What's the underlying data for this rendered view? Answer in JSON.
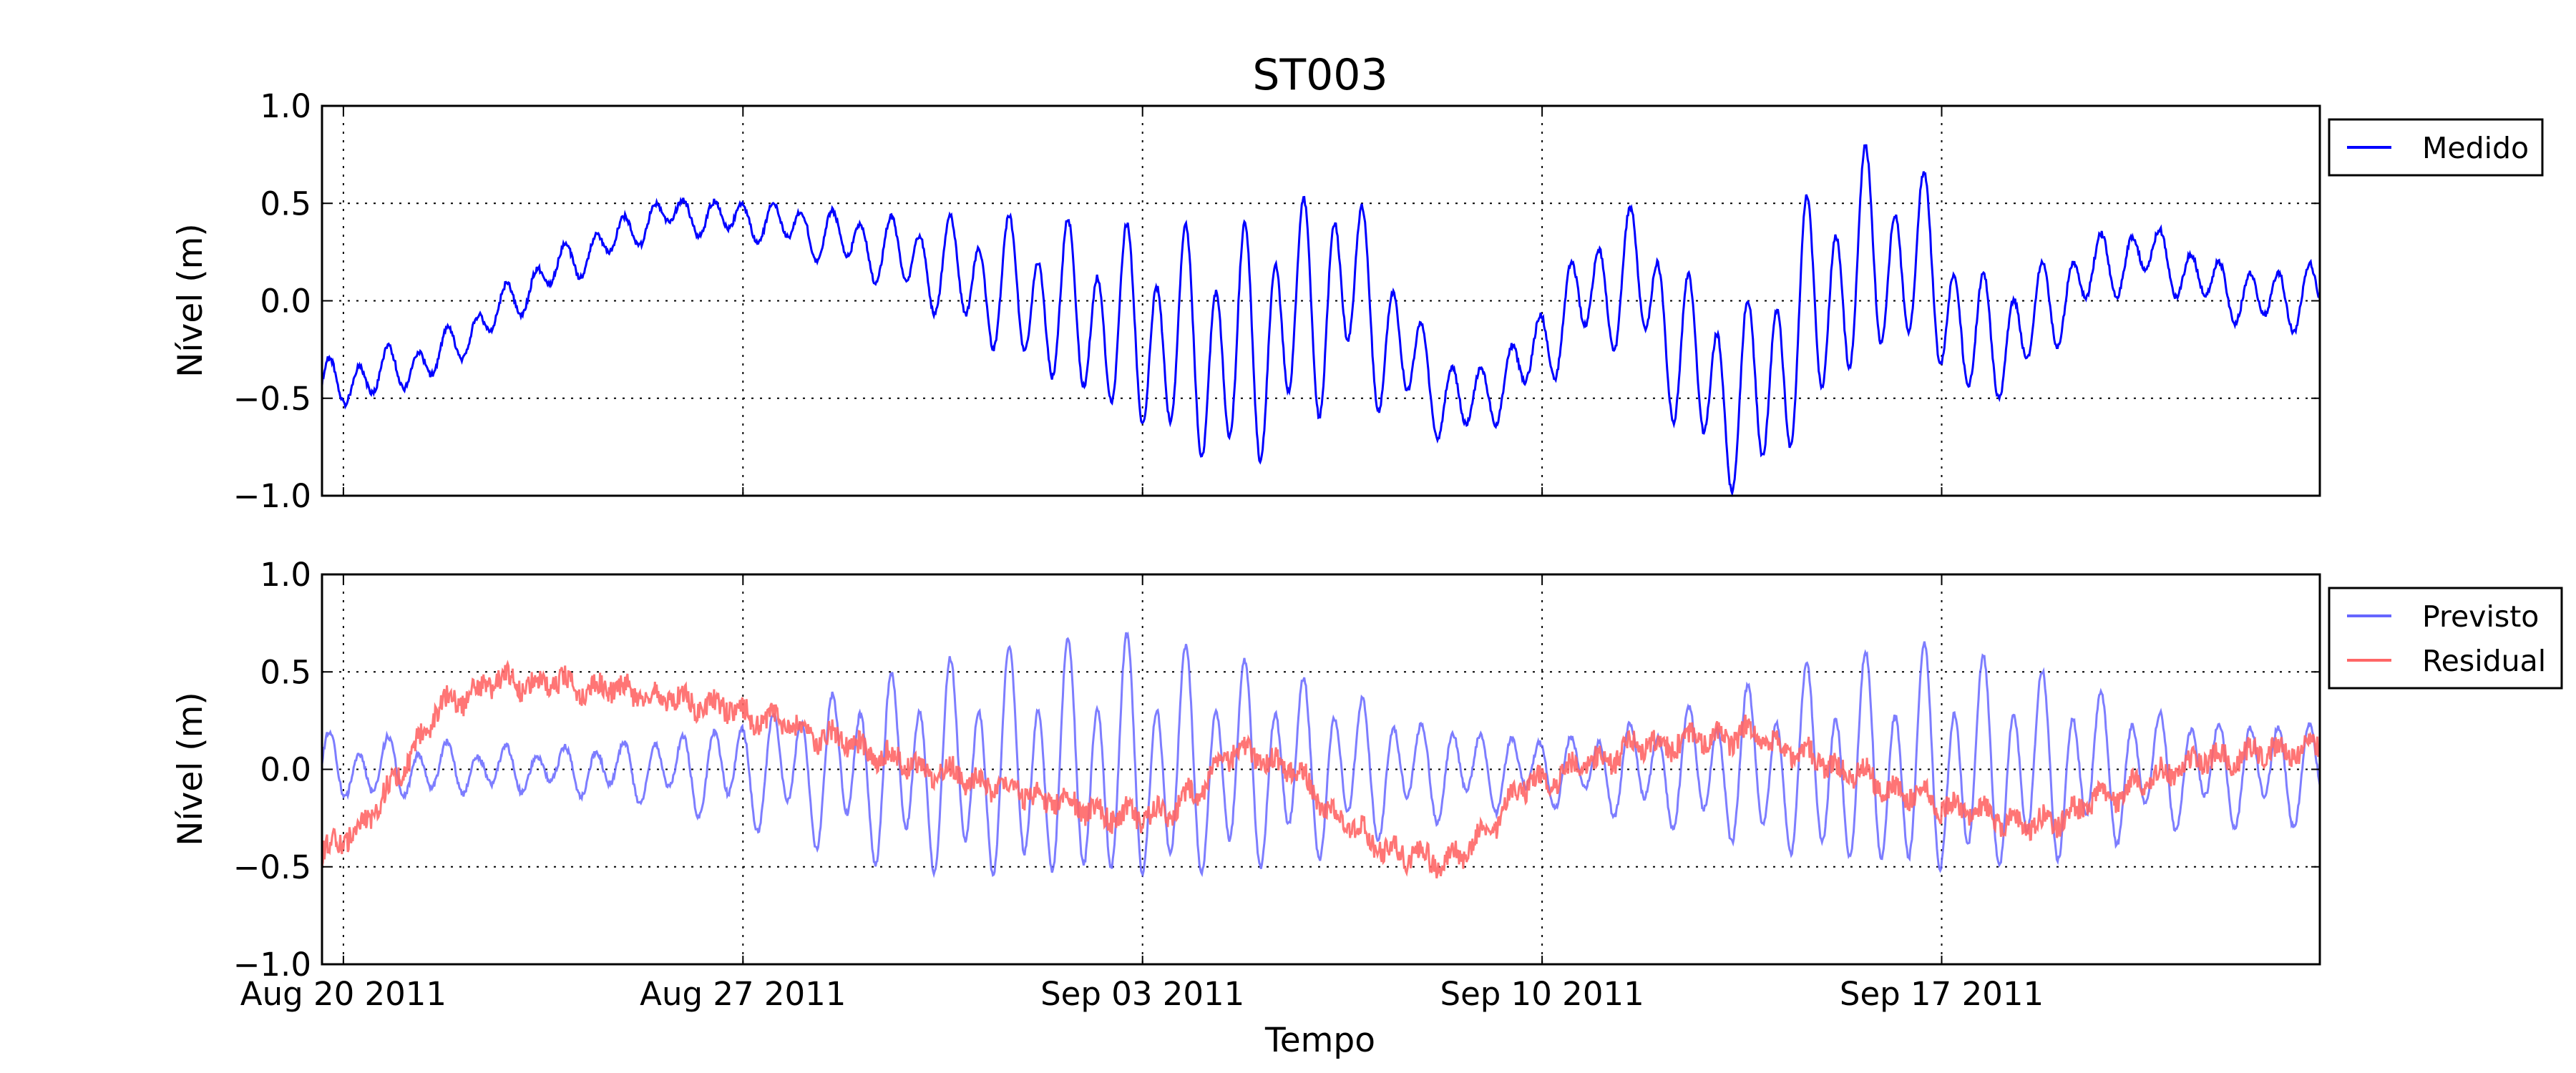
{
  "chart_data": {
    "title": "ST003",
    "type": "line",
    "x_tick_labels": [
      "Aug 20 2011",
      "Aug 27 2011",
      "Sep 03 2011",
      "Sep 10 2011",
      "Sep 17 2011"
    ],
    "x_tick_dates": [
      "2011-08-20",
      "2011-08-27",
      "2011-09-03",
      "2011-09-10",
      "2011-09-17"
    ],
    "xlim": [
      "2011-08-19 15:00",
      "2011-09-23 15:00"
    ],
    "xlabel": "Tempo",
    "grid": true,
    "panels": [
      {
        "ylabel": "Nível (m)",
        "ylim": [
          -1.0,
          1.0
        ],
        "y_ticks": [
          "−1.0",
          "−0.5",
          "0.0",
          "0.5",
          "1.0"
        ],
        "legend_position": "outside-right-top",
        "series": [
          {
            "name": "Medido",
            "color": "#0000ff",
            "opacity": 1,
            "trend": [
              [
                0,
                -0.45
              ],
              [
                2,
                -0.3
              ],
              [
                4,
                0.15
              ],
              [
                6,
                0.45
              ],
              [
                8,
                0.4
              ],
              [
                10,
                0.25
              ],
              [
                12,
                0.05
              ],
              [
                14,
                -0.15
              ],
              [
                16,
                -0.3
              ],
              [
                17,
                -0.1
              ],
              [
                18,
                0.1
              ],
              [
                19,
                -0.3
              ],
              [
                20,
                -0.55
              ],
              [
                21,
                -0.35
              ],
              [
                22,
                0.0
              ],
              [
                23,
                0.15
              ],
              [
                24,
                -0.35
              ],
              [
                25,
                -0.55
              ],
              [
                26,
                -0.1
              ],
              [
                27,
                0.2
              ],
              [
                28,
                0.2
              ],
              [
                29,
                -0.25
              ],
              [
                30,
                -0.1
              ],
              [
                31,
                0.15
              ],
              [
                32,
                0.25
              ],
              [
                33,
                0.1
              ],
              [
                34,
                0.0
              ],
              [
                35,
                0.05
              ]
            ],
            "amp": [
              [
                0,
                0.15
              ],
              [
                2,
                0.12
              ],
              [
                4,
                0.12
              ],
              [
                6,
                0.1
              ],
              [
                8,
                0.12
              ],
              [
                10,
                0.2
              ],
              [
                12,
                0.4
              ],
              [
                14,
                0.55
              ],
              [
                16,
                0.7
              ],
              [
                18,
                0.6
              ],
              [
                19,
                0.35
              ],
              [
                20,
                0.2
              ],
              [
                21,
                0.2
              ],
              [
                22,
                0.3
              ],
              [
                24,
                0.5
              ],
              [
                26,
                0.65
              ],
              [
                27,
                0.6
              ],
              [
                29,
                0.4
              ],
              [
                30,
                0.3
              ],
              [
                31,
                0.2
              ],
              [
                33,
                0.15
              ],
              [
                35,
                0.2
              ]
            ]
          }
        ]
      },
      {
        "ylabel": "Nível (m)",
        "ylim": [
          -1.0,
          1.0
        ],
        "y_ticks": [
          "−1.0",
          "−0.5",
          "0.0",
          "0.5",
          "1.0"
        ],
        "legend_position": "outside-right-top",
        "series": [
          {
            "name": "Previsto",
            "color": "#6666ff",
            "opacity": 0.85,
            "trend": [
              [
                0,
                0.0
              ],
              [
                35,
                0.0
              ]
            ],
            "amp": [
              [
                0,
                0.2
              ],
              [
                2,
                0.15
              ],
              [
                4,
                0.12
              ],
              [
                6,
                0.2
              ],
              [
                8,
                0.35
              ],
              [
                10,
                0.55
              ],
              [
                12,
                0.65
              ],
              [
                14,
                0.7
              ],
              [
                16,
                0.6
              ],
              [
                18,
                0.45
              ],
              [
                19,
                0.3
              ],
              [
                20,
                0.25
              ],
              [
                21,
                0.2
              ],
              [
                22,
                0.2
              ],
              [
                24,
                0.35
              ],
              [
                26,
                0.55
              ],
              [
                28,
                0.65
              ],
              [
                30,
                0.55
              ],
              [
                32,
                0.35
              ],
              [
                33,
                0.3
              ],
              [
                35,
                0.3
              ]
            ]
          },
          {
            "name": "Residual",
            "color": "#ff6666",
            "opacity": 0.9,
            "trend": [
              [
                0,
                -0.45
              ],
              [
                1,
                -0.2
              ],
              [
                2,
                0.3
              ],
              [
                3,
                0.45
              ],
              [
                5,
                0.42
              ],
              [
                7,
                0.32
              ],
              [
                9,
                0.15
              ],
              [
                10,
                0.05
              ],
              [
                12,
                -0.1
              ],
              [
                14,
                -0.25
              ],
              [
                15,
                -0.2
              ],
              [
                16,
                0.1
              ],
              [
                17,
                0.0
              ],
              [
                18,
                -0.3
              ],
              [
                19,
                -0.45
              ],
              [
                20,
                -0.45
              ],
              [
                21,
                -0.1
              ],
              [
                23,
                0.12
              ],
              [
                25,
                0.18
              ],
              [
                28,
                -0.15
              ],
              [
                30,
                -0.3
              ],
              [
                32,
                -0.05
              ],
              [
                33,
                0.05
              ],
              [
                35,
                0.12
              ]
            ],
            "amp": [
              [
                0,
                0.05
              ],
              [
                35,
                0.05
              ]
            ]
          }
        ]
      }
    ]
  }
}
